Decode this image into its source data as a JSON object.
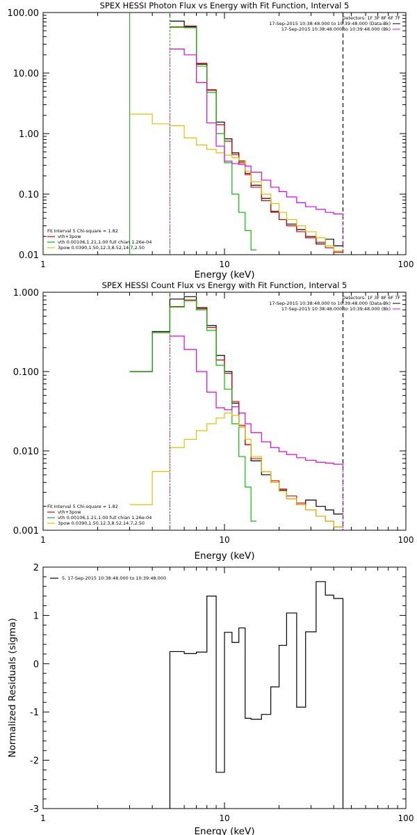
{
  "chart_data": [
    {
      "type": "line",
      "title": "SPEX HESSI Photon Flux vs Energy with Fit Function, Interval 5",
      "xlabel": "Energy (keV)",
      "ylabel": "",
      "xscale": "log",
      "yscale": "log",
      "xlim": [
        1,
        100
      ],
      "ylim": [
        0.01,
        100
      ],
      "x_ticks": [
        "1",
        "10",
        "100"
      ],
      "y_ticks": [
        "0.01",
        "0.10",
        "1.00",
        "10.00",
        "100.00"
      ],
      "legend_right": [
        "Detectors: 1F 3F 8F 6F 7F",
        "17-Sep-2015 10:38:48.000 to 10:39:48.000 (Data-Bk)",
        "17-Sep-2015 10:38:48.000 to 10:39:48.000 (Bk)"
      ],
      "legend_left": [
        "Fit Interval 5   Chi-square = 1.82",
        "vth+3pow",
        "vth 0.00106,1.21,1.00  full chian 1.26e-04",
        "3pow 0.0390,1.50,12.3,8.52,14.7,2.50"
      ],
      "vlines": [
        3.0,
        5.0,
        45.0
      ],
      "grid": false,
      "series": [
        {
          "name": "(Data-Bk)",
          "color": "#000000",
          "edges": [
            5,
            6,
            7,
            8,
            9,
            10,
            11,
            12,
            13,
            14,
            16,
            18,
            20,
            22,
            25,
            28,
            32,
            36,
            40,
            45
          ],
          "values": [
            72,
            58,
            14,
            5.2,
            1.55,
            0.82,
            0.48,
            0.35,
            0.22,
            0.14,
            0.085,
            0.052,
            0.038,
            0.032,
            0.026,
            0.02,
            0.015,
            0.018,
            0.014
          ]
        },
        {
          "name": "vth+3pow",
          "color": "#e00000",
          "edges": [
            5,
            6,
            7,
            8,
            9,
            10,
            11,
            12,
            13,
            14,
            16,
            18,
            20,
            22,
            25,
            28,
            32,
            36,
            40,
            45
          ],
          "values": [
            58,
            60,
            14.5,
            5.3,
            1.4,
            0.75,
            0.45,
            0.33,
            0.21,
            0.13,
            0.078,
            0.05,
            0.038,
            0.03,
            0.024,
            0.019,
            0.016,
            0.013,
            0.011
          ]
        },
        {
          "name": "vth",
          "color": "#00c000",
          "edges": [
            5,
            6,
            7,
            8,
            9,
            10,
            11,
            12,
            13,
            14,
            15
          ],
          "values": [
            57,
            56,
            13,
            4.8,
            1.0,
            0.33,
            0.1,
            0.05,
            0.025,
            0.012
          ]
        },
        {
          "name": "3pow",
          "color": "#e0c000",
          "edges": [
            3,
            4,
            5,
            6,
            7,
            8,
            9,
            10,
            11,
            12,
            13,
            14,
            16,
            18,
            20,
            22,
            25,
            28,
            32,
            36,
            40,
            45
          ],
          "values": [
            2.1,
            1.45,
            1.35,
            0.85,
            0.65,
            0.55,
            0.48,
            0.44,
            0.4,
            0.36,
            0.24,
            0.16,
            0.1,
            0.07,
            0.05,
            0.038,
            0.03,
            0.024,
            0.019,
            0.014,
            0.0115
          ]
        },
        {
          "name": "(Bk)",
          "color": "#e000e0",
          "edges": [
            5,
            6,
            7,
            8,
            9,
            10,
            11,
            12,
            13,
            14,
            16,
            18,
            20,
            22,
            25,
            28,
            32,
            36,
            40,
            45
          ],
          "values": [
            25,
            20,
            7.0,
            1.5,
            0.62,
            0.35,
            0.32,
            0.31,
            0.29,
            0.23,
            0.17,
            0.13,
            0.11,
            0.09,
            0.072,
            0.062,
            0.056,
            0.05,
            0.047,
            0.044
          ]
        }
      ]
    },
    {
      "type": "line",
      "title": "SPEX HESSI Count Flux vs Energy with Fit Function, Interval 5",
      "xlabel": "Energy (keV)",
      "ylabel": "",
      "xscale": "log",
      "yscale": "log",
      "xlim": [
        1,
        100
      ],
      "ylim": [
        0.001,
        1.0
      ],
      "x_ticks": [
        "1",
        "10",
        "100"
      ],
      "y_ticks": [
        "0.001",
        "0.010",
        "0.100",
        "1.000"
      ],
      "legend_right": [
        "Detectors: 1F 3F 8F 6F 7F",
        "17-Sep-2015 10:38:48.000 to 10:39:48.000 (Data-Bk)",
        "17-Sep-2015 10:38:48.000 to 10:39:48.000 (Bk)"
      ],
      "legend_left": [
        "Fit Interval 5   Chi-square = 1.82",
        "vth+3pow",
        "vth 0.00106,1.21,1.00  full chian 1.26e-04",
        "3pow 0.0390,1.50,12.3,8.52,14.7,2.50"
      ],
      "vlines": [
        5.0,
        45.0
      ],
      "grid": false,
      "series": [
        {
          "name": "(Data-Bk)",
          "color": "#000000",
          "edges": [
            3,
            4,
            5,
            6,
            7,
            8,
            9,
            10,
            11,
            12,
            13,
            14,
            16,
            18,
            20,
            22,
            25,
            28,
            32,
            36,
            40,
            45
          ],
          "values": [
            0.1,
            0.32,
            0.82,
            0.88,
            0.64,
            0.38,
            0.16,
            0.1,
            0.04,
            0.02,
            0.012,
            0.0075,
            0.005,
            0.004,
            0.0032,
            0.0025,
            0.0021,
            0.0024,
            0.002,
            0.0018,
            0.0016
          ]
        },
        {
          "name": "vth+3pow",
          "color": "#e00000",
          "edges": [
            3,
            4,
            5,
            6,
            7,
            8,
            9,
            10,
            11,
            12,
            13,
            14,
            16,
            18,
            20,
            22,
            25,
            28,
            32,
            36,
            40,
            45
          ],
          "values": [
            0.1,
            0.31,
            0.66,
            0.8,
            0.62,
            0.36,
            0.14,
            0.095,
            0.042,
            0.021,
            0.012,
            0.008,
            0.0055,
            0.0042,
            0.0033,
            0.0027,
            0.0022,
            0.0018,
            0.0015,
            0.0013,
            0.0011
          ]
        },
        {
          "name": "vth",
          "color": "#00c000",
          "edges": [
            3,
            4,
            5,
            6,
            7,
            8,
            9,
            10,
            11,
            12,
            13,
            14,
            15
          ],
          "values": [
            0.1,
            0.31,
            0.65,
            0.78,
            0.6,
            0.33,
            0.12,
            0.06,
            0.022,
            0.0085,
            0.0035,
            0.0013
          ]
        },
        {
          "name": "3pow",
          "color": "#e0c000",
          "edges": [
            3,
            4,
            5,
            6,
            7,
            8,
            9,
            10,
            11,
            12,
            13,
            14,
            16,
            18,
            20,
            22,
            25,
            28,
            32,
            36,
            40,
            45
          ],
          "values": [
            0.0021,
            0.0055,
            0.011,
            0.014,
            0.018,
            0.022,
            0.026,
            0.03,
            0.028,
            0.02,
            0.014,
            0.0085,
            0.0055,
            0.004,
            0.0031,
            0.0025,
            0.0021,
            0.0018,
            0.0015,
            0.0013,
            0.0011
          ]
        },
        {
          "name": "(Bk)",
          "color": "#e000e0",
          "edges": [
            5,
            6,
            7,
            8,
            9,
            10,
            11,
            12,
            13,
            14,
            16,
            18,
            20,
            22,
            25,
            28,
            32,
            36,
            40,
            45
          ],
          "values": [
            0.28,
            0.19,
            0.1,
            0.055,
            0.035,
            0.033,
            0.036,
            0.03,
            0.022,
            0.017,
            0.013,
            0.011,
            0.0098,
            0.009,
            0.0082,
            0.0076,
            0.0072,
            0.007,
            0.0068,
            0.0066
          ]
        }
      ]
    },
    {
      "type": "line",
      "title": "",
      "xlabel": "Energy (keV)",
      "ylabel": "Normalized Residuals (sigma)",
      "xscale": "log",
      "yscale": "linear",
      "xlim": [
        1,
        100
      ],
      "ylim": [
        -3,
        2
      ],
      "x_ticks": [
        "1",
        "10",
        "100"
      ],
      "y_ticks": [
        "-3",
        "-2",
        "-1",
        "0",
        "1",
        "2"
      ],
      "legend": "5, 17-Sep-2015 10:38:48.000 to 10:39:48.000",
      "grid": false,
      "series": [
        {
          "name": "5, 17-Sep-2015 10:38:48.000 to 10:39:48.000",
          "color": "#000000",
          "edges": [
            5,
            6,
            7,
            8,
            9,
            10,
            11,
            12,
            13,
            14,
            16,
            18,
            20,
            22,
            25,
            28,
            32,
            36,
            40,
            45
          ],
          "values": [
            0.25,
            0.21,
            0.24,
            1.4,
            -2.25,
            0.65,
            0.44,
            0.74,
            -1.13,
            -1.15,
            -1.05,
            -0.48,
            0.38,
            1.05,
            -0.9,
            0.66,
            1.7,
            1.42,
            1.35
          ],
          "drop_to_bottom": true
        }
      ]
    }
  ]
}
